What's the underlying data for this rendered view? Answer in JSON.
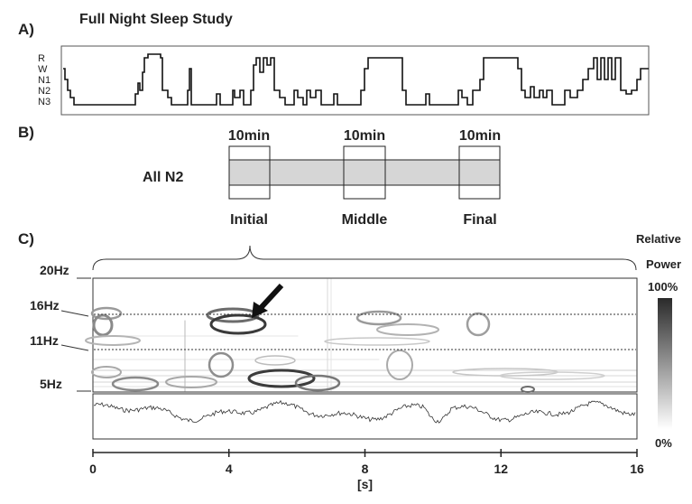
{
  "panel_a": {
    "label": "A)",
    "title": "Full Night Sleep Study",
    "stage_labels": [
      "R",
      "W",
      "N1",
      "N2",
      "N3"
    ]
  },
  "panel_b": {
    "label": "B)",
    "row_label": "All N2",
    "windows": [
      {
        "duration": "10min",
        "name": "Initial"
      },
      {
        "duration": "10min",
        "name": "Middle"
      },
      {
        "duration": "10min",
        "name": "Final"
      }
    ]
  },
  "panel_c": {
    "label": "C)",
    "freq_labels": [
      "20Hz",
      "16Hz",
      "11Hz",
      "5Hz"
    ],
    "x_ticks": [
      "0",
      "4",
      "8",
      "12",
      "16"
    ],
    "x_unit": "[s]",
    "colorbar": {
      "title_line1": "Relative",
      "title_line2": "Power",
      "max": "100%",
      "min": "0%"
    }
  }
}
